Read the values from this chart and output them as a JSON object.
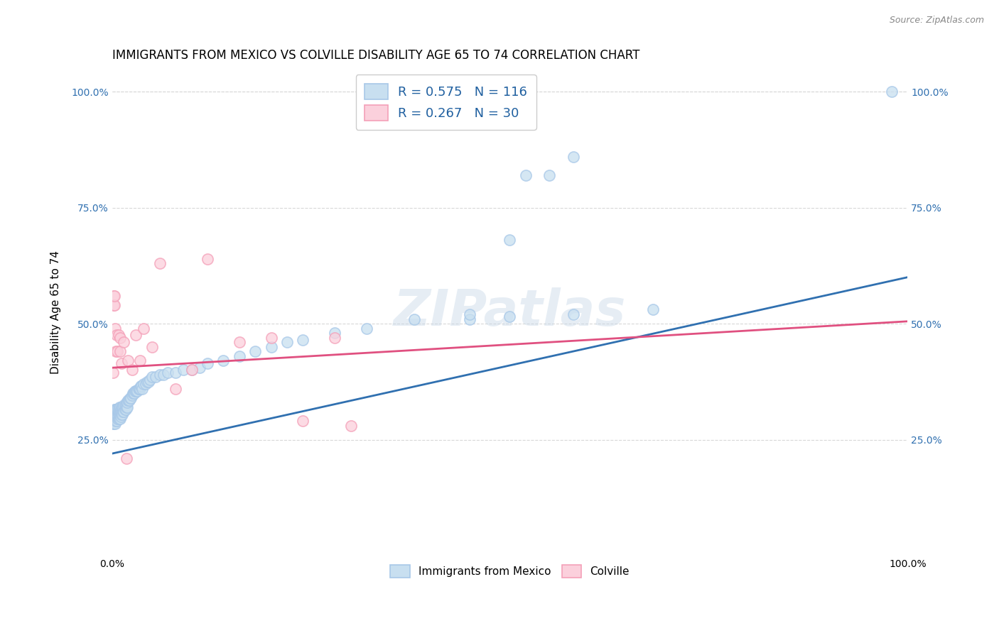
{
  "title": "IMMIGRANTS FROM MEXICO VS COLVILLE DISABILITY AGE 65 TO 74 CORRELATION CHART",
  "source": "Source: ZipAtlas.com",
  "ylabel": "Disability Age 65 to 74",
  "xlim": [
    0.0,
    1.0
  ],
  "ylim": [
    0.0,
    1.05
  ],
  "ytick_labels": [
    "25.0%",
    "50.0%",
    "75.0%",
    "100.0%"
  ],
  "ytick_positions": [
    0.25,
    0.5,
    0.75,
    1.0
  ],
  "watermark": "ZIPatlas",
  "blue_R": "0.575",
  "blue_N": "116",
  "pink_R": "0.267",
  "pink_N": "30",
  "blue_color": "#a8c8e8",
  "pink_color": "#f4a0b8",
  "blue_fill_color": "#c8dff0",
  "pink_fill_color": "#fbd0dc",
  "blue_line_color": "#3070b0",
  "pink_line_color": "#e05080",
  "blue_scatter_x": [
    0.001,
    0.001,
    0.001,
    0.002,
    0.002,
    0.002,
    0.002,
    0.003,
    0.003,
    0.003,
    0.003,
    0.003,
    0.004,
    0.004,
    0.004,
    0.004,
    0.005,
    0.005,
    0.005,
    0.005,
    0.005,
    0.006,
    0.006,
    0.006,
    0.006,
    0.007,
    0.007,
    0.007,
    0.007,
    0.007,
    0.008,
    0.008,
    0.008,
    0.008,
    0.009,
    0.009,
    0.009,
    0.009,
    0.01,
    0.01,
    0.01,
    0.01,
    0.011,
    0.011,
    0.011,
    0.012,
    0.012,
    0.012,
    0.013,
    0.013,
    0.013,
    0.014,
    0.014,
    0.015,
    0.015,
    0.016,
    0.016,
    0.017,
    0.017,
    0.018,
    0.018,
    0.019,
    0.019,
    0.02,
    0.021,
    0.022,
    0.023,
    0.024,
    0.025,
    0.026,
    0.027,
    0.028,
    0.029,
    0.03,
    0.031,
    0.032,
    0.033,
    0.034,
    0.035,
    0.036,
    0.037,
    0.038,
    0.04,
    0.042,
    0.044,
    0.046,
    0.048,
    0.05,
    0.055,
    0.06,
    0.065,
    0.07,
    0.08,
    0.09,
    0.1,
    0.11,
    0.12,
    0.14,
    0.16,
    0.18,
    0.2,
    0.22,
    0.24,
    0.28,
    0.32,
    0.38,
    0.45,
    0.5,
    0.58,
    0.68,
    0.45,
    0.5,
    0.52,
    0.55,
    0.98,
    0.58
  ],
  "blue_scatter_y": [
    0.285,
    0.295,
    0.305,
    0.285,
    0.295,
    0.3,
    0.31,
    0.29,
    0.295,
    0.305,
    0.31,
    0.315,
    0.285,
    0.295,
    0.305,
    0.315,
    0.29,
    0.3,
    0.305,
    0.31,
    0.315,
    0.29,
    0.3,
    0.31,
    0.315,
    0.295,
    0.3,
    0.305,
    0.31,
    0.315,
    0.295,
    0.305,
    0.31,
    0.315,
    0.295,
    0.305,
    0.31,
    0.32,
    0.295,
    0.305,
    0.31,
    0.32,
    0.3,
    0.31,
    0.315,
    0.305,
    0.31,
    0.32,
    0.305,
    0.315,
    0.32,
    0.31,
    0.32,
    0.31,
    0.325,
    0.315,
    0.325,
    0.315,
    0.325,
    0.32,
    0.33,
    0.32,
    0.33,
    0.335,
    0.335,
    0.335,
    0.34,
    0.34,
    0.345,
    0.35,
    0.35,
    0.35,
    0.355,
    0.355,
    0.355,
    0.355,
    0.36,
    0.36,
    0.36,
    0.365,
    0.365,
    0.36,
    0.37,
    0.37,
    0.375,
    0.375,
    0.38,
    0.385,
    0.385,
    0.39,
    0.39,
    0.395,
    0.395,
    0.4,
    0.4,
    0.405,
    0.415,
    0.42,
    0.43,
    0.44,
    0.45,
    0.46,
    0.465,
    0.48,
    0.49,
    0.51,
    0.51,
    0.515,
    0.52,
    0.53,
    0.52,
    0.68,
    0.82,
    0.82,
    1.0,
    0.86
  ],
  "pink_scatter_x": [
    0.001,
    0.002,
    0.002,
    0.003,
    0.003,
    0.004,
    0.005,
    0.006,
    0.007,
    0.008,
    0.01,
    0.01,
    0.012,
    0.015,
    0.018,
    0.02,
    0.025,
    0.03,
    0.035,
    0.04,
    0.05,
    0.06,
    0.08,
    0.1,
    0.12,
    0.16,
    0.2,
    0.24,
    0.28,
    0.3
  ],
  "pink_scatter_y": [
    0.395,
    0.54,
    0.56,
    0.54,
    0.56,
    0.49,
    0.44,
    0.475,
    0.44,
    0.475,
    0.44,
    0.47,
    0.415,
    0.46,
    0.21,
    0.42,
    0.4,
    0.475,
    0.42,
    0.49,
    0.45,
    0.63,
    0.36,
    0.4,
    0.64,
    0.46,
    0.47,
    0.29,
    0.47,
    0.28
  ],
  "blue_line_x": [
    0.0,
    1.0
  ],
  "blue_line_y": [
    0.22,
    0.6
  ],
  "pink_line_x": [
    0.0,
    1.0
  ],
  "pink_line_y": [
    0.405,
    0.505
  ],
  "grid_color": "#d8d8d8",
  "background_color": "#ffffff",
  "title_fontsize": 12,
  "label_fontsize": 11,
  "tick_fontsize": 10,
  "legend_fontsize": 13,
  "watermark_fontsize": 52,
  "watermark_color": "#c8d8e8",
  "watermark_alpha": 0.45
}
